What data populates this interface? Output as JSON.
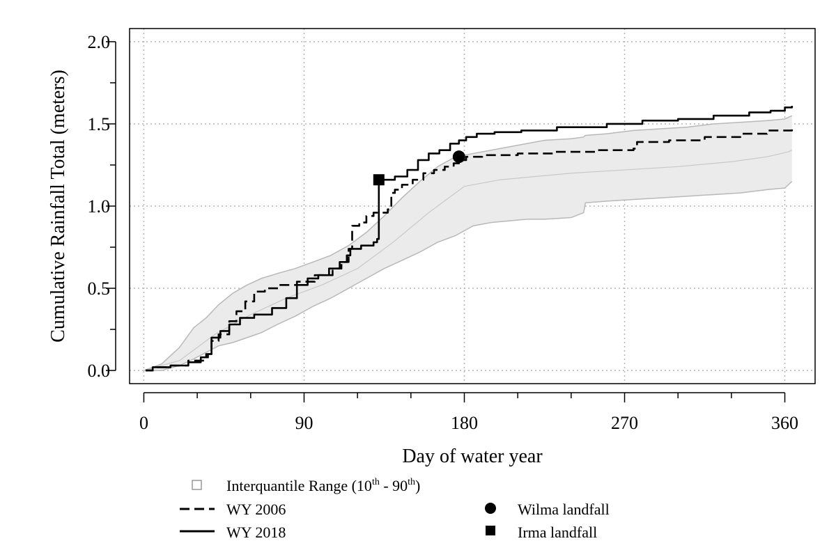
{
  "chart_data": {
    "type": "line",
    "xlabel": "Day of water year",
    "ylabel": "Cumulative Rainfall Total (meters)",
    "xlim": [
      -8,
      377
    ],
    "ylim": [
      -0.08,
      2.08
    ],
    "x_ticks": [
      0,
      90,
      180,
      270,
      360
    ],
    "x_tick_labels": [
      "0",
      "90",
      "180",
      "270",
      "360"
    ],
    "x_minor_ticks": [
      30,
      60,
      120,
      150,
      210,
      240,
      300,
      330
    ],
    "y_ticks": [
      0.0,
      0.5,
      1.0,
      1.5,
      2.0
    ],
    "y_tick_labels": [
      "0.0",
      "0.5",
      "1.0",
      "1.5",
      "2.0"
    ],
    "y_minor_ticks": [
      0.25,
      0.75,
      1.25,
      1.75
    ],
    "grid": true,
    "legend_position": "bottom",
    "colors": {
      "band_fill": "#ebebeb",
      "band_edge": "#b8b8b8",
      "median_line": "#c8c8c8",
      "series": "#000000"
    },
    "band": {
      "name": "Interquantile Range (10th - 90th)",
      "x": [
        0,
        10,
        20,
        28,
        35,
        42,
        50,
        58,
        66,
        75,
        85,
        95,
        105,
        115,
        125,
        135,
        145,
        155,
        165,
        175,
        185,
        195,
        205,
        215,
        225,
        240,
        247,
        248,
        260,
        275,
        290,
        305,
        320,
        335,
        350,
        360,
        364
      ],
      "lower": [
        0.0,
        0.0,
        0.03,
        0.07,
        0.11,
        0.15,
        0.17,
        0.2,
        0.23,
        0.28,
        0.33,
        0.39,
        0.44,
        0.5,
        0.56,
        0.62,
        0.67,
        0.72,
        0.78,
        0.82,
        0.88,
        0.9,
        0.91,
        0.92,
        0.92,
        0.93,
        0.96,
        1.02,
        1.03,
        1.04,
        1.05,
        1.06,
        1.07,
        1.08,
        1.1,
        1.11,
        1.15
      ],
      "upper": [
        0.0,
        0.04,
        0.14,
        0.26,
        0.32,
        0.4,
        0.47,
        0.52,
        0.56,
        0.59,
        0.62,
        0.66,
        0.7,
        0.76,
        0.84,
        0.94,
        1.05,
        1.15,
        1.24,
        1.3,
        1.32,
        1.34,
        1.36,
        1.38,
        1.4,
        1.41,
        1.42,
        1.43,
        1.44,
        1.46,
        1.47,
        1.48,
        1.5,
        1.51,
        1.52,
        1.53,
        1.55
      ]
    },
    "median": {
      "x": [
        0,
        20,
        40,
        60,
        80,
        100,
        120,
        140,
        160,
        180,
        200,
        240,
        270,
        300,
        330,
        350,
        362,
        364
      ],
      "y": [
        0.0,
        0.06,
        0.22,
        0.34,
        0.44,
        0.52,
        0.62,
        0.78,
        0.96,
        1.12,
        1.16,
        1.2,
        1.22,
        1.24,
        1.27,
        1.3,
        1.33,
        1.34
      ]
    },
    "series": [
      {
        "name": "WY 2006",
        "style": "dashed",
        "x": [
          1,
          5,
          15,
          25,
          35,
          38,
          42,
          48,
          52,
          57,
          62,
          68,
          76,
          86,
          96,
          106,
          111,
          115,
          117,
          121,
          125,
          129,
          133,
          137,
          139,
          141,
          145,
          151,
          157,
          163,
          169,
          174,
          177,
          181,
          190,
          210,
          230,
          255,
          275,
          277,
          295,
          315,
          335,
          350,
          364
        ],
        "y": [
          0.0,
          0.02,
          0.03,
          0.06,
          0.1,
          0.18,
          0.22,
          0.3,
          0.36,
          0.42,
          0.48,
          0.5,
          0.52,
          0.54,
          0.58,
          0.62,
          0.66,
          0.74,
          0.88,
          0.9,
          0.94,
          0.96,
          0.96,
          0.98,
          1.08,
          1.1,
          1.13,
          1.16,
          1.2,
          1.22,
          1.24,
          1.26,
          1.28,
          1.3,
          1.31,
          1.32,
          1.33,
          1.34,
          1.35,
          1.39,
          1.4,
          1.42,
          1.44,
          1.46,
          1.47
        ]
      },
      {
        "name": "WY 2018",
        "style": "solid",
        "x": [
          1,
          5,
          15,
          25,
          32,
          36,
          38,
          43,
          48,
          54,
          62,
          72,
          80,
          86,
          92,
          98,
          104,
          110,
          114,
          116,
          122,
          129,
          131,
          132,
          134,
          141,
          148,
          154,
          160,
          166,
          172,
          177,
          181,
          187,
          197,
          212,
          232,
          260,
          280,
          300,
          320,
          340,
          352,
          360,
          364
        ],
        "y": [
          0.0,
          0.02,
          0.03,
          0.05,
          0.08,
          0.1,
          0.2,
          0.24,
          0.28,
          0.32,
          0.34,
          0.38,
          0.44,
          0.52,
          0.56,
          0.58,
          0.62,
          0.66,
          0.7,
          0.74,
          0.76,
          0.78,
          0.8,
          1.16,
          1.16,
          1.18,
          1.22,
          1.28,
          1.32,
          1.34,
          1.38,
          1.4,
          1.42,
          1.44,
          1.45,
          1.46,
          1.48,
          1.5,
          1.52,
          1.53,
          1.55,
          1.57,
          1.58,
          1.6,
          1.61
        ]
      }
    ],
    "markers": [
      {
        "name": "Wilma landfall",
        "shape": "circle",
        "x": 177,
        "y": 1.3
      },
      {
        "name": "Irma landfall",
        "shape": "square",
        "x": 132,
        "y": 1.16
      }
    ],
    "legend": {
      "band_label_main": "Interquantile Range (10",
      "band_label_sup1": "th",
      "band_label_mid": " - 90",
      "band_label_sup2": "th",
      "band_label_end": ")",
      "wy2006": "WY 2006",
      "wy2018": "WY 2018",
      "wilma": "Wilma landfall",
      "irma": "Irma landfall"
    }
  }
}
